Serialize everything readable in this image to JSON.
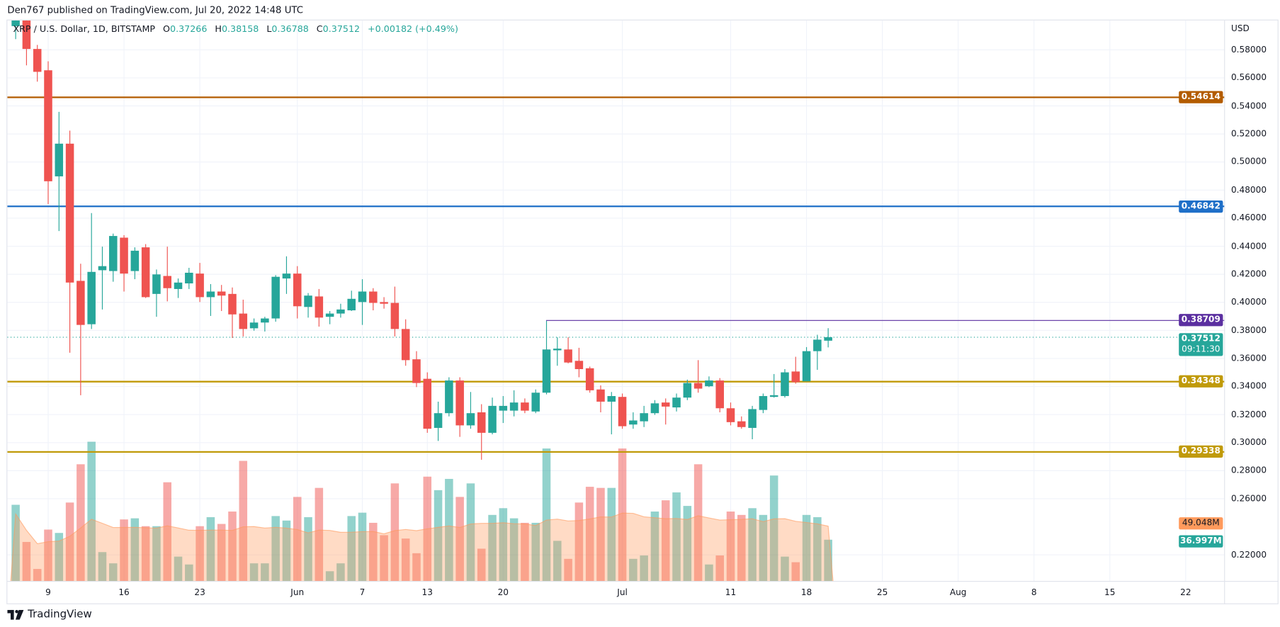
{
  "header": {
    "published": "Den767 published on TradingView.com, Jul 20, 2022 14:48 UTC",
    "symbol": "XRP / U.S. Dollar, 1D, BITSTAMP",
    "o_label": "O",
    "o": "0.37266",
    "h_label": "H",
    "h": "0.38158",
    "l_label": "L",
    "l": "0.36788",
    "c_label": "C",
    "c": "0.37512",
    "change": "+0.00182 (+0.49%)"
  },
  "axis": {
    "currency": "USD",
    "ticks": [
      "0.58000",
      "0.56000",
      "0.54000",
      "0.52000",
      "0.50000",
      "0.48000",
      "0.46000",
      "0.44000",
      "0.42000",
      "0.40000",
      "0.38000",
      "0.36000",
      "0.34000",
      "0.32000",
      "0.30000",
      "0.28000",
      "0.26000",
      "0.22000"
    ]
  },
  "tags": {
    "level1": {
      "text": "0.54614",
      "color": "#b35c00"
    },
    "level2": {
      "text": "0.46842",
      "color": "#1e6fc8"
    },
    "level3": {
      "text": "0.38709",
      "color": "#5b2fa0"
    },
    "last_price": {
      "text": "0.37512",
      "countdown": "09:11:30",
      "color": "#26a69a"
    },
    "level4": {
      "text": "0.34348",
      "color": "#c09a09"
    },
    "level5": {
      "text": "0.29338",
      "color": "#c09a09"
    },
    "vol_ma": {
      "text": "49.048M",
      "color": "#ff9a5c"
    },
    "vol": {
      "text": "36.997M",
      "color": "#26a69a"
    }
  },
  "footer": {
    "brand": "TradingView"
  },
  "chart_data": {
    "type": "candlestick",
    "title": "XRP / U.S. Dollar, 1D, BITSTAMP",
    "x_unit": "days since May 9, 2022",
    "ylim": [
      0.2,
      0.6
    ],
    "grid": true,
    "up_color": "#26a69a",
    "down_color": "#ef5350",
    "time_ticks": [
      {
        "d": 0,
        "label": "9"
      },
      {
        "d": 7,
        "label": "16"
      },
      {
        "d": 14,
        "label": "23"
      },
      {
        "d": 23,
        "label": "Jun"
      },
      {
        "d": 29,
        "label": "7"
      },
      {
        "d": 35,
        "label": "13"
      },
      {
        "d": 42,
        "label": "20"
      },
      {
        "d": 53,
        "label": "Jul"
      },
      {
        "d": 63,
        "label": "11"
      },
      {
        "d": 70,
        "label": "18"
      },
      {
        "d": 77,
        "label": "25"
      },
      {
        "d": 84,
        "label": "Aug"
      },
      {
        "d": 91,
        "label": "8"
      },
      {
        "d": 98,
        "label": "15"
      },
      {
        "d": 105,
        "label": "22"
      }
    ],
    "horizontal_levels": [
      0.54614,
      0.46842,
      0.34348,
      0.29338
    ],
    "ray_level": {
      "price": 0.38709,
      "from_d": 46
    },
    "last_price": 0.37512,
    "volume_ma": 49.048,
    "candles_columns": [
      "d",
      "open",
      "high",
      "low",
      "close",
      "volume_M"
    ],
    "candles": [
      [
        -3,
        0.5969,
        0.6039,
        0.5876,
        0.6009,
        68
      ],
      [
        -2,
        0.6009,
        0.6027,
        0.5689,
        0.5806,
        35
      ],
      [
        -1,
        0.5806,
        0.5835,
        0.5573,
        0.5643,
        11
      ],
      [
        0,
        0.5654,
        0.5718,
        0.47,
        0.4863,
        46
      ],
      [
        1,
        0.4898,
        0.5358,
        0.4508,
        0.5131,
        43
      ],
      [
        2,
        0.5131,
        0.5224,
        0.3641,
        0.4141,
        70
      ],
      [
        3,
        0.4153,
        0.4275,
        0.3338,
        0.3839,
        104
      ],
      [
        4,
        0.3844,
        0.4636,
        0.381,
        0.4217,
        124
      ],
      [
        5,
        0.4229,
        0.4397,
        0.3949,
        0.4258,
        26
      ],
      [
        6,
        0.4223,
        0.449,
        0.4147,
        0.4473,
        16
      ],
      [
        7,
        0.4461,
        0.4479,
        0.4077,
        0.4205,
        55
      ],
      [
        8,
        0.4223,
        0.4392,
        0.4165,
        0.4368,
        56
      ],
      [
        9,
        0.4392,
        0.4415,
        0.4031,
        0.4037,
        49
      ],
      [
        10,
        0.406,
        0.4234,
        0.3897,
        0.4199,
        49
      ],
      [
        11,
        0.4188,
        0.4397,
        0.4007,
        0.4101,
        88
      ],
      [
        12,
        0.4095,
        0.417,
        0.4031,
        0.4141,
        22
      ],
      [
        13,
        0.4135,
        0.4246,
        0.4095,
        0.4211,
        15
      ],
      [
        14,
        0.4205,
        0.4281,
        0.4002,
        0.4037,
        49
      ],
      [
        15,
        0.4037,
        0.413,
        0.3903,
        0.4077,
        57
      ],
      [
        16,
        0.4077,
        0.4124,
        0.3938,
        0.4048,
        51
      ],
      [
        17,
        0.406,
        0.4106,
        0.3746,
        0.3914,
        62
      ],
      [
        18,
        0.392,
        0.4019,
        0.3757,
        0.381,
        107
      ],
      [
        19,
        0.3815,
        0.3885,
        0.3798,
        0.3856,
        16
      ],
      [
        20,
        0.3856,
        0.3897,
        0.3792,
        0.3885,
        16
      ],
      [
        21,
        0.3885,
        0.4194,
        0.3862,
        0.4182,
        58
      ],
      [
        22,
        0.417,
        0.4328,
        0.406,
        0.4205,
        54
      ],
      [
        23,
        0.4205,
        0.4258,
        0.3885,
        0.3972,
        75
      ],
      [
        24,
        0.3967,
        0.4066,
        0.3891,
        0.4048,
        57
      ],
      [
        25,
        0.4042,
        0.4095,
        0.3827,
        0.3891,
        83
      ],
      [
        26,
        0.3897,
        0.3938,
        0.3844,
        0.392,
        9
      ],
      [
        27,
        0.392,
        0.399,
        0.3891,
        0.3949,
        16
      ],
      [
        28,
        0.3943,
        0.4083,
        0.3938,
        0.4025,
        58
      ],
      [
        29,
        0.4002,
        0.4165,
        0.3839,
        0.4077,
        61
      ],
      [
        30,
        0.4077,
        0.4101,
        0.3943,
        0.3996,
        52
      ],
      [
        31,
        0.4002,
        0.4037,
        0.3955,
        0.399,
        41
      ],
      [
        32,
        0.3996,
        0.4112,
        0.3757,
        0.381,
        87
      ],
      [
        33,
        0.381,
        0.3879,
        0.3548,
        0.3588,
        38
      ],
      [
        34,
        0.3594,
        0.3652,
        0.3396,
        0.3425,
        25
      ],
      [
        35,
        0.3455,
        0.3501,
        0.307,
        0.3099,
        93
      ],
      [
        36,
        0.3105,
        0.3292,
        0.3012,
        0.321,
        81
      ],
      [
        37,
        0.321,
        0.3466,
        0.3187,
        0.3443,
        91
      ],
      [
        38,
        0.3443,
        0.3466,
        0.3041,
        0.3123,
        75
      ],
      [
        39,
        0.3123,
        0.3361,
        0.3099,
        0.321,
        87
      ],
      [
        40,
        0.3216,
        0.3274,
        0.2878,
        0.307,
        29
      ],
      [
        41,
        0.307,
        0.3321,
        0.3059,
        0.3262,
        59
      ],
      [
        42,
        0.3228,
        0.3332,
        0.314,
        0.3262,
        65
      ],
      [
        43,
        0.3228,
        0.3373,
        0.3187,
        0.3286,
        56
      ],
      [
        44,
        0.3286,
        0.3315,
        0.321,
        0.3228,
        52
      ],
      [
        45,
        0.3222,
        0.3379,
        0.321,
        0.3356,
        52
      ],
      [
        46,
        0.3356,
        0.3868,
        0.3344,
        0.3664,
        118
      ],
      [
        47,
        0.3658,
        0.3751,
        0.3548,
        0.367,
        36
      ],
      [
        48,
        0.3664,
        0.3751,
        0.3565,
        0.3571,
        20
      ],
      [
        49,
        0.3583,
        0.3676,
        0.3466,
        0.3524,
        70
      ],
      [
        50,
        0.353,
        0.3542,
        0.3356,
        0.3373,
        84
      ],
      [
        51,
        0.3379,
        0.3408,
        0.3216,
        0.3292,
        83
      ],
      [
        52,
        0.3292,
        0.3361,
        0.3059,
        0.3332,
        83
      ],
      [
        53,
        0.3326,
        0.335,
        0.3099,
        0.3117,
        118
      ],
      [
        54,
        0.3129,
        0.3216,
        0.3099,
        0.3158,
        20
      ],
      [
        55,
        0.3152,
        0.3262,
        0.3111,
        0.321,
        23
      ],
      [
        56,
        0.321,
        0.3303,
        0.3198,
        0.328,
        62
      ],
      [
        57,
        0.3286,
        0.3315,
        0.3129,
        0.3257,
        72
      ],
      [
        58,
        0.3251,
        0.335,
        0.3222,
        0.3321,
        79
      ],
      [
        59,
        0.3321,
        0.3449,
        0.3303,
        0.3425,
        67
      ],
      [
        60,
        0.3425,
        0.3588,
        0.3356,
        0.3385,
        104
      ],
      [
        61,
        0.3402,
        0.3472,
        0.3396,
        0.3443,
        15
      ],
      [
        62,
        0.3443,
        0.346,
        0.3216,
        0.3245,
        23
      ],
      [
        63,
        0.3245,
        0.3286,
        0.3123,
        0.3146,
        62
      ],
      [
        64,
        0.3152,
        0.3187,
        0.3099,
        0.3111,
        59
      ],
      [
        65,
        0.3105,
        0.3262,
        0.3024,
        0.3239,
        65
      ],
      [
        66,
        0.3233,
        0.335,
        0.321,
        0.3332,
        59
      ],
      [
        67,
        0.3326,
        0.3489,
        0.3321,
        0.3338,
        94
      ],
      [
        68,
        0.3332,
        0.3524,
        0.3321,
        0.3501,
        22
      ],
      [
        69,
        0.3507,
        0.3612,
        0.342,
        0.3431,
        17
      ],
      [
        70,
        0.3437,
        0.3681,
        0.3437,
        0.3652,
        59
      ],
      [
        71,
        0.3652,
        0.3769,
        0.3519,
        0.3734,
        57
      ],
      [
        72,
        0.37266,
        0.38158,
        0.36788,
        0.37512,
        37
      ]
    ]
  }
}
